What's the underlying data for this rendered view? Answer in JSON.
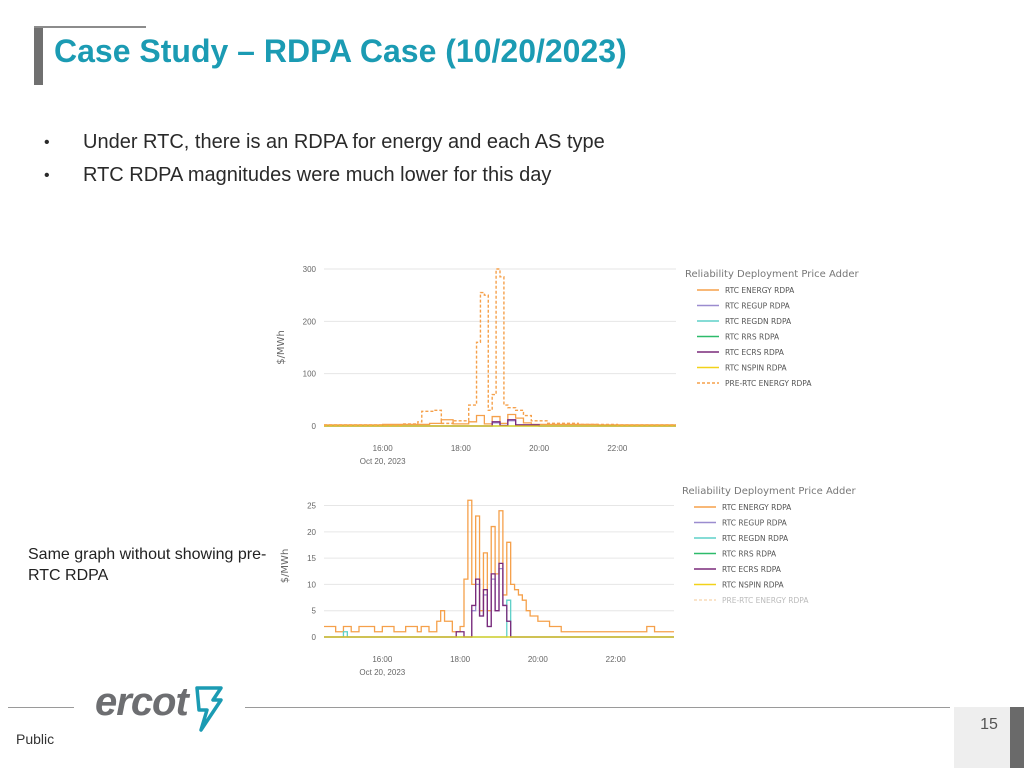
{
  "slide": {
    "title": "Case Study – RDPA Case (10/20/2023)",
    "bullets": [
      "Under RTC, there is an RDPA for energy and each AS type",
      "RTC RDPA magnitudes were much lower for this day"
    ],
    "side_note": "Same graph without showing pre-RTC RDPA",
    "footer": {
      "classification": "Public",
      "page_number": "15",
      "logo_text": "ercot"
    },
    "colors": {
      "title": "#1b9bb3",
      "accent_bar": "#707070"
    }
  },
  "chart_data": [
    {
      "type": "line",
      "ylabel": "$/MWh",
      "x_ticks": [
        "16:00",
        "18:00",
        "20:00",
        "22:00"
      ],
      "x_date": "Oct 20, 2023",
      "y_ticks": [
        "0",
        "100",
        "200",
        "300"
      ],
      "xlim": [
        14.5,
        23.5
      ],
      "ylim": [
        0,
        300
      ],
      "legend_title": "Reliability Deployment Price Adder",
      "series": [
        {
          "name": "RTC ENERGY RDPA",
          "color": "#f5a04a",
          "dash": false,
          "x": [
            14.5,
            15.5,
            16.0,
            16.8,
            17.2,
            17.5,
            17.8,
            18.2,
            18.4,
            18.6,
            18.8,
            19.0,
            19.2,
            19.4,
            19.6,
            19.8,
            20.5,
            21.5,
            22.5,
            23.5
          ],
          "y": [
            2,
            2,
            3,
            3,
            5,
            12,
            4,
            8,
            20,
            4,
            18,
            5,
            22,
            15,
            6,
            3,
            3,
            2,
            2,
            2
          ]
        },
        {
          "name": "RTC REGUP RDPA",
          "color": "#9b8ccf",
          "dash": false,
          "x": [
            14.5,
            17.5,
            18.6,
            18.8,
            19.0,
            19.2,
            19.4,
            20.0,
            23.5
          ],
          "y": [
            0,
            0,
            0,
            6,
            1,
            10,
            2,
            0,
            0
          ]
        },
        {
          "name": "RTC REGDN RDPA",
          "color": "#5fd0c8",
          "dash": false,
          "x": [
            14.5,
            23.5
          ],
          "y": [
            0,
            0
          ]
        },
        {
          "name": "RTC RRS RDPA",
          "color": "#2dbb6a",
          "dash": false,
          "x": [
            14.5,
            23.5
          ],
          "y": [
            0,
            0
          ]
        },
        {
          "name": "RTC ECRS RDPA",
          "color": "#7a2a7a",
          "dash": false,
          "x": [
            14.5,
            17.5,
            18.6,
            18.8,
            19.0,
            19.2,
            19.4,
            20.0,
            23.5
          ],
          "y": [
            0,
            0,
            0,
            8,
            1,
            12,
            2,
            0,
            0
          ]
        },
        {
          "name": "RTC NSPIN RDPA",
          "color": "#f2d21a",
          "dash": false,
          "x": [
            14.5,
            23.5
          ],
          "y": [
            0,
            0
          ]
        },
        {
          "name": "PRE-RTC ENERGY RDPA",
          "color": "#f5a04a",
          "dash": true,
          "x": [
            14.5,
            15.5,
            16.5,
            16.9,
            17.0,
            17.3,
            17.5,
            17.8,
            18.2,
            18.4,
            18.5,
            18.6,
            18.7,
            18.8,
            18.9,
            19.0,
            19.1,
            19.2,
            19.4,
            19.6,
            19.8,
            20.2,
            21.0,
            22.0,
            23.5
          ],
          "y": [
            2,
            2,
            4,
            8,
            28,
            30,
            5,
            10,
            40,
            160,
            255,
            250,
            30,
            60,
            300,
            285,
            40,
            35,
            30,
            20,
            10,
            5,
            3,
            2,
            2
          ]
        }
      ]
    },
    {
      "type": "line",
      "ylabel": "$/MWh",
      "x_ticks": [
        "16:00",
        "18:00",
        "20:00",
        "22:00"
      ],
      "x_date": "Oct 20, 2023",
      "y_ticks": [
        "0",
        "5",
        "10",
        "15",
        "20",
        "25"
      ],
      "xlim": [
        14.5,
        23.5
      ],
      "ylim": [
        0,
        27
      ],
      "legend_title": "Reliability Deployment Price Adder",
      "series": [
        {
          "name": "RTC ENERGY RDPA",
          "color": "#f5a04a",
          "dash": false,
          "x": [
            14.5,
            14.8,
            15.0,
            15.2,
            15.4,
            15.8,
            16.0,
            16.3,
            16.6,
            16.9,
            17.0,
            17.2,
            17.4,
            17.5,
            17.6,
            17.8,
            18.0,
            18.1,
            18.2,
            18.3,
            18.4,
            18.5,
            18.6,
            18.7,
            18.8,
            18.9,
            19.0,
            19.1,
            19.2,
            19.3,
            19.4,
            19.5,
            19.6,
            19.7,
            19.8,
            20.0,
            20.3,
            20.6,
            21.0,
            21.5,
            22.0,
            22.5,
            22.8,
            23.0,
            23.5
          ],
          "y": [
            2,
            1,
            2,
            1,
            2,
            1,
            2,
            1,
            2,
            1,
            2,
            1,
            3,
            5,
            3,
            1,
            2,
            11,
            26,
            10,
            23,
            5,
            16,
            5,
            21,
            12,
            24,
            8,
            18,
            10,
            9,
            8,
            7,
            5,
            4,
            3,
            2,
            1,
            1,
            1,
            1,
            1,
            2,
            1,
            1
          ]
        },
        {
          "name": "RTC REGUP RDPA",
          "color": "#9b8ccf",
          "dash": false,
          "x": [
            14.5,
            18.1,
            18.3,
            18.4,
            18.5,
            18.6,
            18.7,
            18.8,
            18.9,
            19.0,
            19.1,
            19.2,
            19.3,
            23.5
          ],
          "y": [
            0,
            0,
            5,
            10,
            4,
            8,
            2,
            11,
            5,
            13,
            6,
            3,
            0,
            0
          ]
        },
        {
          "name": "RTC REGDN RDPA",
          "color": "#5fd0c8",
          "dash": false,
          "x": [
            14.5,
            14.9,
            15.0,
            15.1,
            19.0,
            19.2,
            19.3,
            23.5
          ],
          "y": [
            0,
            0,
            1,
            0,
            0,
            7,
            0,
            0
          ]
        },
        {
          "name": "RTC RRS RDPA",
          "color": "#2dbb6a",
          "dash": false,
          "x": [
            14.5,
            23.5
          ],
          "y": [
            0,
            0
          ]
        },
        {
          "name": "RTC ECRS RDPA",
          "color": "#7a2a7a",
          "dash": false,
          "x": [
            14.5,
            17.8,
            17.9,
            18.1,
            18.3,
            18.4,
            18.5,
            18.6,
            18.7,
            18.8,
            18.9,
            19.0,
            19.1,
            19.2,
            19.3,
            23.5
          ],
          "y": [
            0,
            0,
            1,
            0,
            6,
            11,
            4,
            9,
            2,
            12,
            5,
            14,
            6,
            3,
            0,
            0
          ]
        },
        {
          "name": "RTC NSPIN RDPA",
          "color": "#f2d21a",
          "dash": false,
          "x": [
            14.5,
            23.5
          ],
          "y": [
            0,
            0
          ]
        },
        {
          "name": "PRE-RTC ENERGY RDPA",
          "color": "#f5c38a",
          "dash": true,
          "hidden": true,
          "x": [],
          "y": []
        }
      ]
    }
  ]
}
